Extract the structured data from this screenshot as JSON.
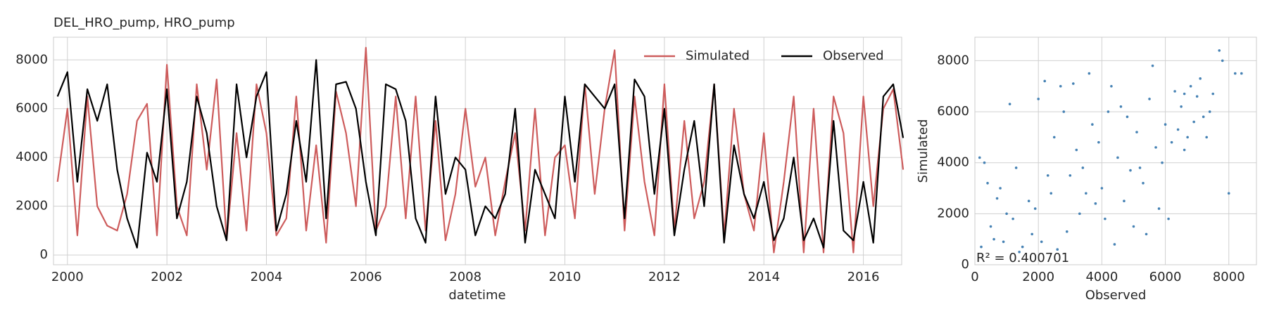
{
  "chart_data": [
    {
      "type": "line",
      "title": "DEL_HRO_pump, HRO_pump",
      "x_label": "datetime",
      "x": [
        1999.8,
        2000.0,
        2000.2,
        2000.4,
        2000.6,
        2000.8,
        2001.0,
        2001.2,
        2001.4,
        2001.6,
        2001.8,
        2002.0,
        2002.2,
        2002.4,
        2002.6,
        2002.8,
        2003.0,
        2003.2,
        2003.4,
        2003.6,
        2003.8,
        2004.0,
        2004.2,
        2004.4,
        2004.6,
        2004.8,
        2005.0,
        2005.2,
        2005.4,
        2005.6,
        2005.8,
        2006.0,
        2006.2,
        2006.4,
        2006.6,
        2006.8,
        2007.0,
        2007.2,
        2007.4,
        2007.6,
        2007.8,
        2008.0,
        2008.2,
        2008.4,
        2008.6,
        2008.8,
        2009.0,
        2009.2,
        2009.4,
        2009.6,
        2009.8,
        2010.0,
        2010.2,
        2010.4,
        2010.6,
        2010.8,
        2011.0,
        2011.2,
        2011.4,
        2011.6,
        2011.8,
        2012.0,
        2012.2,
        2012.4,
        2012.6,
        2012.8,
        2013.0,
        2013.2,
        2013.4,
        2013.6,
        2013.8,
        2014.0,
        2014.2,
        2014.4,
        2014.6,
        2014.8,
        2015.0,
        2015.2,
        2015.4,
        2015.6,
        2015.8,
        2016.0,
        2016.2,
        2016.4,
        2016.6,
        2016.8
      ],
      "series": [
        {
          "name": "Simulated",
          "color": "#cd5c5c",
          "values": [
            3000,
            6000,
            800,
            6500,
            2000,
            1200,
            1000,
            2500,
            5500,
            6200,
            800,
            7800,
            2000,
            800,
            7000,
            3500,
            7200,
            600,
            5000,
            1000,
            7000,
            5000,
            800,
            1500,
            6500,
            1000,
            4500,
            500,
            6700,
            5000,
            2000,
            8500,
            1000,
            2000,
            6500,
            1500,
            6500,
            1000,
            5500,
            600,
            2500,
            6000,
            2800,
            4000,
            800,
            3000,
            5000,
            1000,
            6000,
            800,
            4000,
            4500,
            1500,
            7000,
            2500,
            6000,
            8400,
            1000,
            6500,
            3000,
            800,
            7000,
            1000,
            5500,
            1500,
            3000,
            7000,
            800,
            6000,
            2500,
            1000,
            5000,
            100,
            3000,
            6500,
            100,
            6000,
            100,
            6500,
            5000,
            100,
            6500,
            2000,
            6000,
            6800,
            3500
          ]
        },
        {
          "name": "Observed",
          "color": "#000000",
          "values": [
            6500,
            7500,
            3000,
            6800,
            5500,
            7000,
            3500,
            1500,
            300,
            4200,
            3000,
            6800,
            1500,
            3000,
            6500,
            5000,
            2000,
            600,
            7000,
            4000,
            6500,
            7500,
            1000,
            2500,
            5500,
            3000,
            8000,
            1500,
            7000,
            7100,
            6000,
            3000,
            800,
            7000,
            6800,
            5500,
            1500,
            500,
            6500,
            2500,
            4000,
            3500,
            800,
            2000,
            1500,
            2500,
            6000,
            500,
            3500,
            2500,
            1500,
            6500,
            3000,
            7000,
            6500,
            6000,
            7000,
            1500,
            7200,
            6500,
            2500,
            6000,
            800,
            3500,
            5500,
            2000,
            7000,
            500,
            4500,
            2500,
            1500,
            3000,
            600,
            1500,
            4000,
            600,
            1500,
            300,
            5500,
            1000,
            600,
            3000,
            500,
            6500,
            7000,
            4800
          ]
        }
      ],
      "xlim": [
        1999.72,
        2016.77
      ],
      "ylim": [
        -400,
        8930
      ],
      "xticks": [
        2000,
        2002,
        2004,
        2006,
        2008,
        2010,
        2012,
        2014,
        2016
      ],
      "yticks": [
        0,
        2000,
        4000,
        6000,
        8000
      ],
      "grid": true,
      "legend": "upper right"
    },
    {
      "type": "scatter",
      "x_label": "Observed",
      "y_label": "Simulated",
      "color": "#4682b4",
      "annotation": "R² = 0.400701",
      "x": [
        200,
        500,
        800,
        1200,
        1500,
        300,
        900,
        1700,
        2000,
        2200,
        2500,
        1800,
        2800,
        3000,
        3200,
        3500,
        3700,
        4000,
        4200,
        4500,
        4800,
        5000,
        5200,
        5500,
        5800,
        6000,
        6300,
        6500,
        6700,
        7000,
        7200,
        6800,
        6600,
        7100,
        3300,
        3600,
        2600,
        4100,
        4700,
        5300,
        5600,
        6200,
        7400,
        7800,
        8200,
        1000,
        1400,
        600,
        2300,
        2900,
        3900,
        4400,
        5100,
        5900,
        6900,
        7500,
        400,
        1100,
        1900,
        2700,
        3400,
        4600,
        5400,
        6400,
        7300,
        8000,
        150,
        700,
        1300,
        2100,
        3100,
        3800,
        4300,
        4900,
        5700,
        6100,
        7700,
        8400,
        2400,
        6600
      ],
      "values": [
        700,
        1500,
        3000,
        1800,
        700,
        4000,
        900,
        2500,
        6500,
        7200,
        5000,
        1200,
        6000,
        3500,
        4500,
        2800,
        5500,
        3000,
        6000,
        4200,
        5800,
        1500,
        3800,
        6500,
        2200,
        5500,
        6800,
        6200,
        5000,
        6600,
        5800,
        7000,
        4500,
        7300,
        2000,
        7500,
        600,
        1800,
        2500,
        3200,
        7800,
        4800,
        6000,
        8000,
        7500,
        2000,
        500,
        1000,
        3500,
        1300,
        4800,
        800,
        5200,
        4000,
        5600,
        6700,
        3200,
        6300,
        2200,
        7000,
        3800,
        6200,
        1200,
        5300,
        5000,
        2800,
        4200,
        2600,
        3800,
        900,
        7100,
        2400,
        7000,
        3700,
        4600,
        1800,
        8400,
        7500,
        2800,
        6700
      ],
      "xlim": [
        0,
        8870
      ],
      "ylim": [
        0,
        8920
      ],
      "xticks": [
        0,
        2000,
        4000,
        6000,
        8000
      ],
      "yticks": [
        0,
        2000,
        4000,
        6000,
        8000
      ],
      "grid": true
    }
  ]
}
